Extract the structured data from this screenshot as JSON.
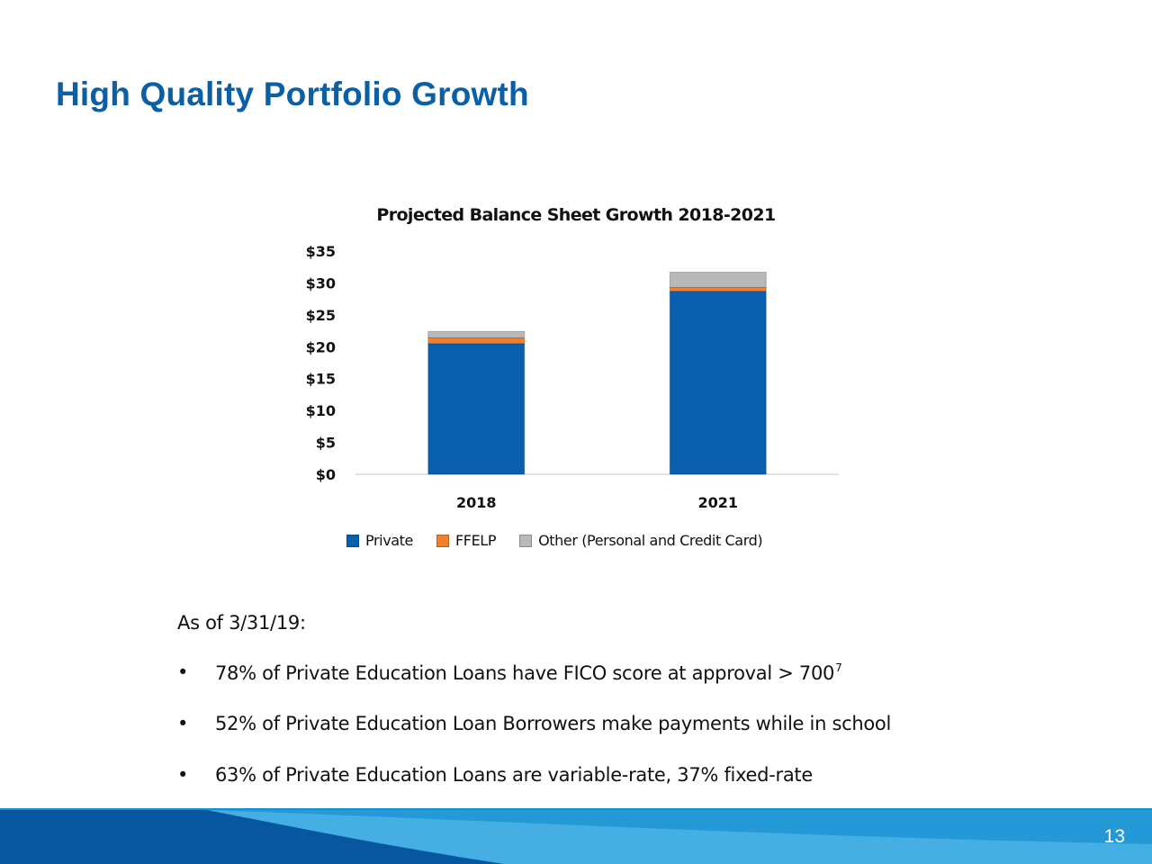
{
  "slide": {
    "title": "High Quality Portfolio Growth",
    "page_number": "13"
  },
  "chart_data": {
    "type": "bar",
    "stacked": true,
    "title": "Projected Balance Sheet Growth 2018-2021",
    "categories": [
      "2018",
      "2021"
    ],
    "series": [
      {
        "name": "Private",
        "color": "#0a5fae",
        "values": [
          20.5,
          28.7
        ]
      },
      {
        "name": "FFELP",
        "color": "#f07f2e",
        "values": [
          0.9,
          0.6
        ]
      },
      {
        "name": "Other (Personal and Credit Card)",
        "color": "#b9b9b9",
        "values": [
          1.0,
          2.4
        ]
      }
    ],
    "ylim": [
      0,
      35
    ],
    "y_ticks": [
      "$0",
      "$5",
      "$10",
      "$15",
      "$20",
      "$25",
      "$30",
      "$35"
    ],
    "grid": false,
    "legend_position": "bottom"
  },
  "notes": {
    "as_of": "As of 3/31/19:",
    "bullets": [
      {
        "text": "78% of Private Education Loans have FICO score at approval > 700",
        "footnote": "7"
      },
      {
        "text": "52% of Private Education Loan Borrowers make payments while in school",
        "footnote": ""
      },
      {
        "text": "63% of Private Education Loans are variable-rate, 37% fixed-rate",
        "footnote": ""
      }
    ],
    "bullet_symbol": "•"
  },
  "colors": {
    "title": "#0b5fa5",
    "footer_light": "#3aa3dd",
    "footer_dark": "#0756a0"
  }
}
